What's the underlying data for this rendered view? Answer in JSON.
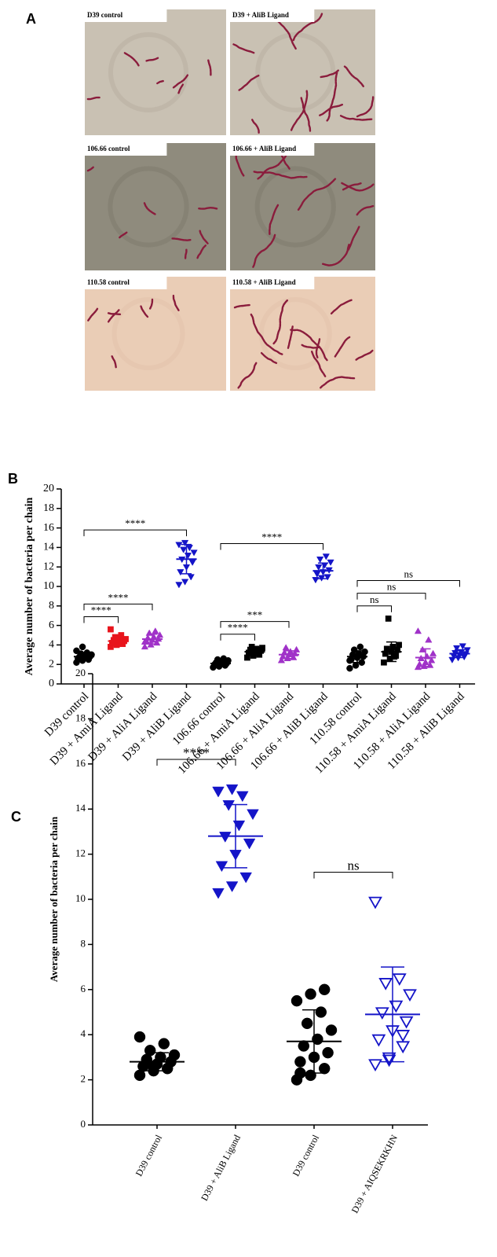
{
  "panel_labels": [
    "A",
    "B",
    "C"
  ],
  "micrographs": [
    {
      "label": "D39 control"
    },
    {
      "label": "D39 + AliB  Ligand"
    },
    {
      "label": "106.66 control"
    },
    {
      "label": "106.66 + AliB Ligand"
    },
    {
      "label": "110.58 control"
    },
    {
      "label": "110.58 + AliB Ligand"
    }
  ],
  "chart_data": [
    {
      "type": "dot",
      "ylabel": "Average number of bacteria per chain",
      "ylim": [
        0,
        20
      ],
      "yticks": [
        0,
        2,
        4,
        6,
        8,
        10,
        12,
        14,
        16,
        18,
        20
      ],
      "categories": [
        "D39 control",
        "D39 + AmiA Ligand",
        "D39 + AliA Ligand",
        "D39 + AliB Ligand",
        "106.66 control",
        "106.66 + AmiA Ligand",
        "106.66 + AliA Ligand",
        "106.66 + AliB Ligand",
        "110.58 control",
        "110.58 + AmiA Ligand",
        "110.58 + AliA Ligand",
        "110.58 + AliB Ligand"
      ],
      "colors": [
        "#000000",
        "#e8141c",
        "#a032c8",
        "#1414c8",
        "#000000",
        "#000000",
        "#a032c8",
        "#1414c8",
        "#000000",
        "#000000",
        "#a032c8",
        "#1414c8"
      ],
      "markers": [
        "circle",
        "square",
        "triangle",
        "triangle-down",
        "circle",
        "square",
        "triangle",
        "triangle-down",
        "circle",
        "square",
        "triangle",
        "triangle-down"
      ],
      "points": [
        [
          2.2,
          2.4,
          2.5,
          2.6,
          2.7,
          2.8,
          2.8,
          2.9,
          3.0,
          3.1,
          3.2,
          3.4,
          3.8
        ],
        [
          3.8,
          4.0,
          4.1,
          4.2,
          4.3,
          4.4,
          4.5,
          4.5,
          4.6,
          4.8,
          5.0,
          5.6
        ],
        [
          3.8,
          4.0,
          4.2,
          4.4,
          4.5,
          4.6,
          4.7,
          4.8,
          5.0,
          5.2,
          5.4,
          4.3
        ],
        [
          10.2,
          10.5,
          11.0,
          11.5,
          12.0,
          12.5,
          12.8,
          13.2,
          13.5,
          13.8,
          14.0,
          14.3,
          14.5
        ],
        [
          1.7,
          1.8,
          1.9,
          2.0,
          2.1,
          2.1,
          2.2,
          2.3,
          2.4,
          2.5,
          2.6
        ],
        [
          2.7,
          2.9,
          3.0,
          3.2,
          3.3,
          3.4,
          3.5,
          3.6,
          3.7,
          3.8,
          3.5
        ],
        [
          2.4,
          2.6,
          2.7,
          2.8,
          3.0,
          3.1,
          3.2,
          3.3,
          3.5,
          3.7
        ],
        [
          10.7,
          10.9,
          11.0,
          11.3,
          11.5,
          11.7,
          12.0,
          12.2,
          12.5,
          12.8,
          13.1
        ],
        [
          1.6,
          1.9,
          2.2,
          2.5,
          2.7,
          2.8,
          3.0,
          3.1,
          3.3,
          3.5,
          3.8,
          2.4
        ],
        [
          2.2,
          2.6,
          2.9,
          3.1,
          3.3,
          3.5,
          3.6,
          3.8,
          4.0,
          6.7,
          2.8
        ],
        [
          1.7,
          1.8,
          1.9,
          2.0,
          2.2,
          2.4,
          2.6,
          2.8,
          3.1,
          3.5,
          4.5,
          5.4
        ],
        [
          2.5,
          2.7,
          2.8,
          2.9,
          3.0,
          3.1,
          3.2,
          3.3,
          3.5,
          3.7,
          3.9
        ]
      ],
      "means": [
        2.8,
        4.4,
        4.6,
        12.8,
        2.1,
        3.3,
        3.0,
        11.6,
        2.8,
        3.3,
        2.7,
        3.1
      ],
      "errors": [
        0.4,
        0.5,
        0.5,
        1.5,
        0.3,
        0.4,
        0.4,
        0.8,
        0.6,
        1.0,
        0.9,
        0.4
      ],
      "brackets": [
        {
          "from": 0,
          "to": 1,
          "label": "****"
        },
        {
          "from": 0,
          "to": 2,
          "label": "****"
        },
        {
          "from": 0,
          "to": 3,
          "label": "****"
        },
        {
          "from": 4,
          "to": 5,
          "label": "****"
        },
        {
          "from": 4,
          "to": 6,
          "label": "***"
        },
        {
          "from": 4,
          "to": 7,
          "label": "****"
        },
        {
          "from": 8,
          "to": 9,
          "label": "ns"
        },
        {
          "from": 8,
          "to": 10,
          "label": "ns"
        },
        {
          "from": 8,
          "to": 11,
          "label": "ns"
        }
      ]
    },
    {
      "type": "dot",
      "ylabel": "Average number of bacteria per chain",
      "ylim": [
        0,
        20
      ],
      "yticks": [
        0,
        2,
        4,
        6,
        8,
        10,
        12,
        14,
        16,
        18,
        20
      ],
      "categories": [
        "D39 control",
        "D39 + AliB Ligand",
        "D39 control",
        "D39 + AIQSEKRKHN"
      ],
      "colors": [
        "#000000",
        "#1414c8",
        "#000000",
        "#1414c8"
      ],
      "markers": [
        "circle",
        "triangle-down",
        "circle",
        "triangle-down-open"
      ],
      "points": [
        [
          2.2,
          2.4,
          2.5,
          2.6,
          2.7,
          2.8,
          2.9,
          3.0,
          3.1,
          3.3,
          3.6,
          3.9,
          2.6
        ],
        [
          10.3,
          10.6,
          11.0,
          11.5,
          12.0,
          12.5,
          12.8,
          13.3,
          13.8,
          14.2,
          14.6,
          14.8,
          14.9
        ],
        [
          2.0,
          2.2,
          2.5,
          2.8,
          3.0,
          3.2,
          3.5,
          3.8,
          4.2,
          4.5,
          5.0,
          5.5,
          5.8,
          6.0,
          2.3
        ],
        [
          2.7,
          3.0,
          3.5,
          3.8,
          4.2,
          4.6,
          5.0,
          5.3,
          5.8,
          6.3,
          6.5,
          9.9,
          2.9,
          4.0
        ]
      ],
      "means": [
        2.8,
        12.8,
        3.7,
        4.9
      ],
      "errors": [
        0.4,
        1.4,
        1.4,
        2.1
      ],
      "brackets": [
        {
          "from": 0,
          "to": 1,
          "label": "****"
        },
        {
          "from": 2,
          "to": 3,
          "label": "ns"
        }
      ]
    }
  ]
}
